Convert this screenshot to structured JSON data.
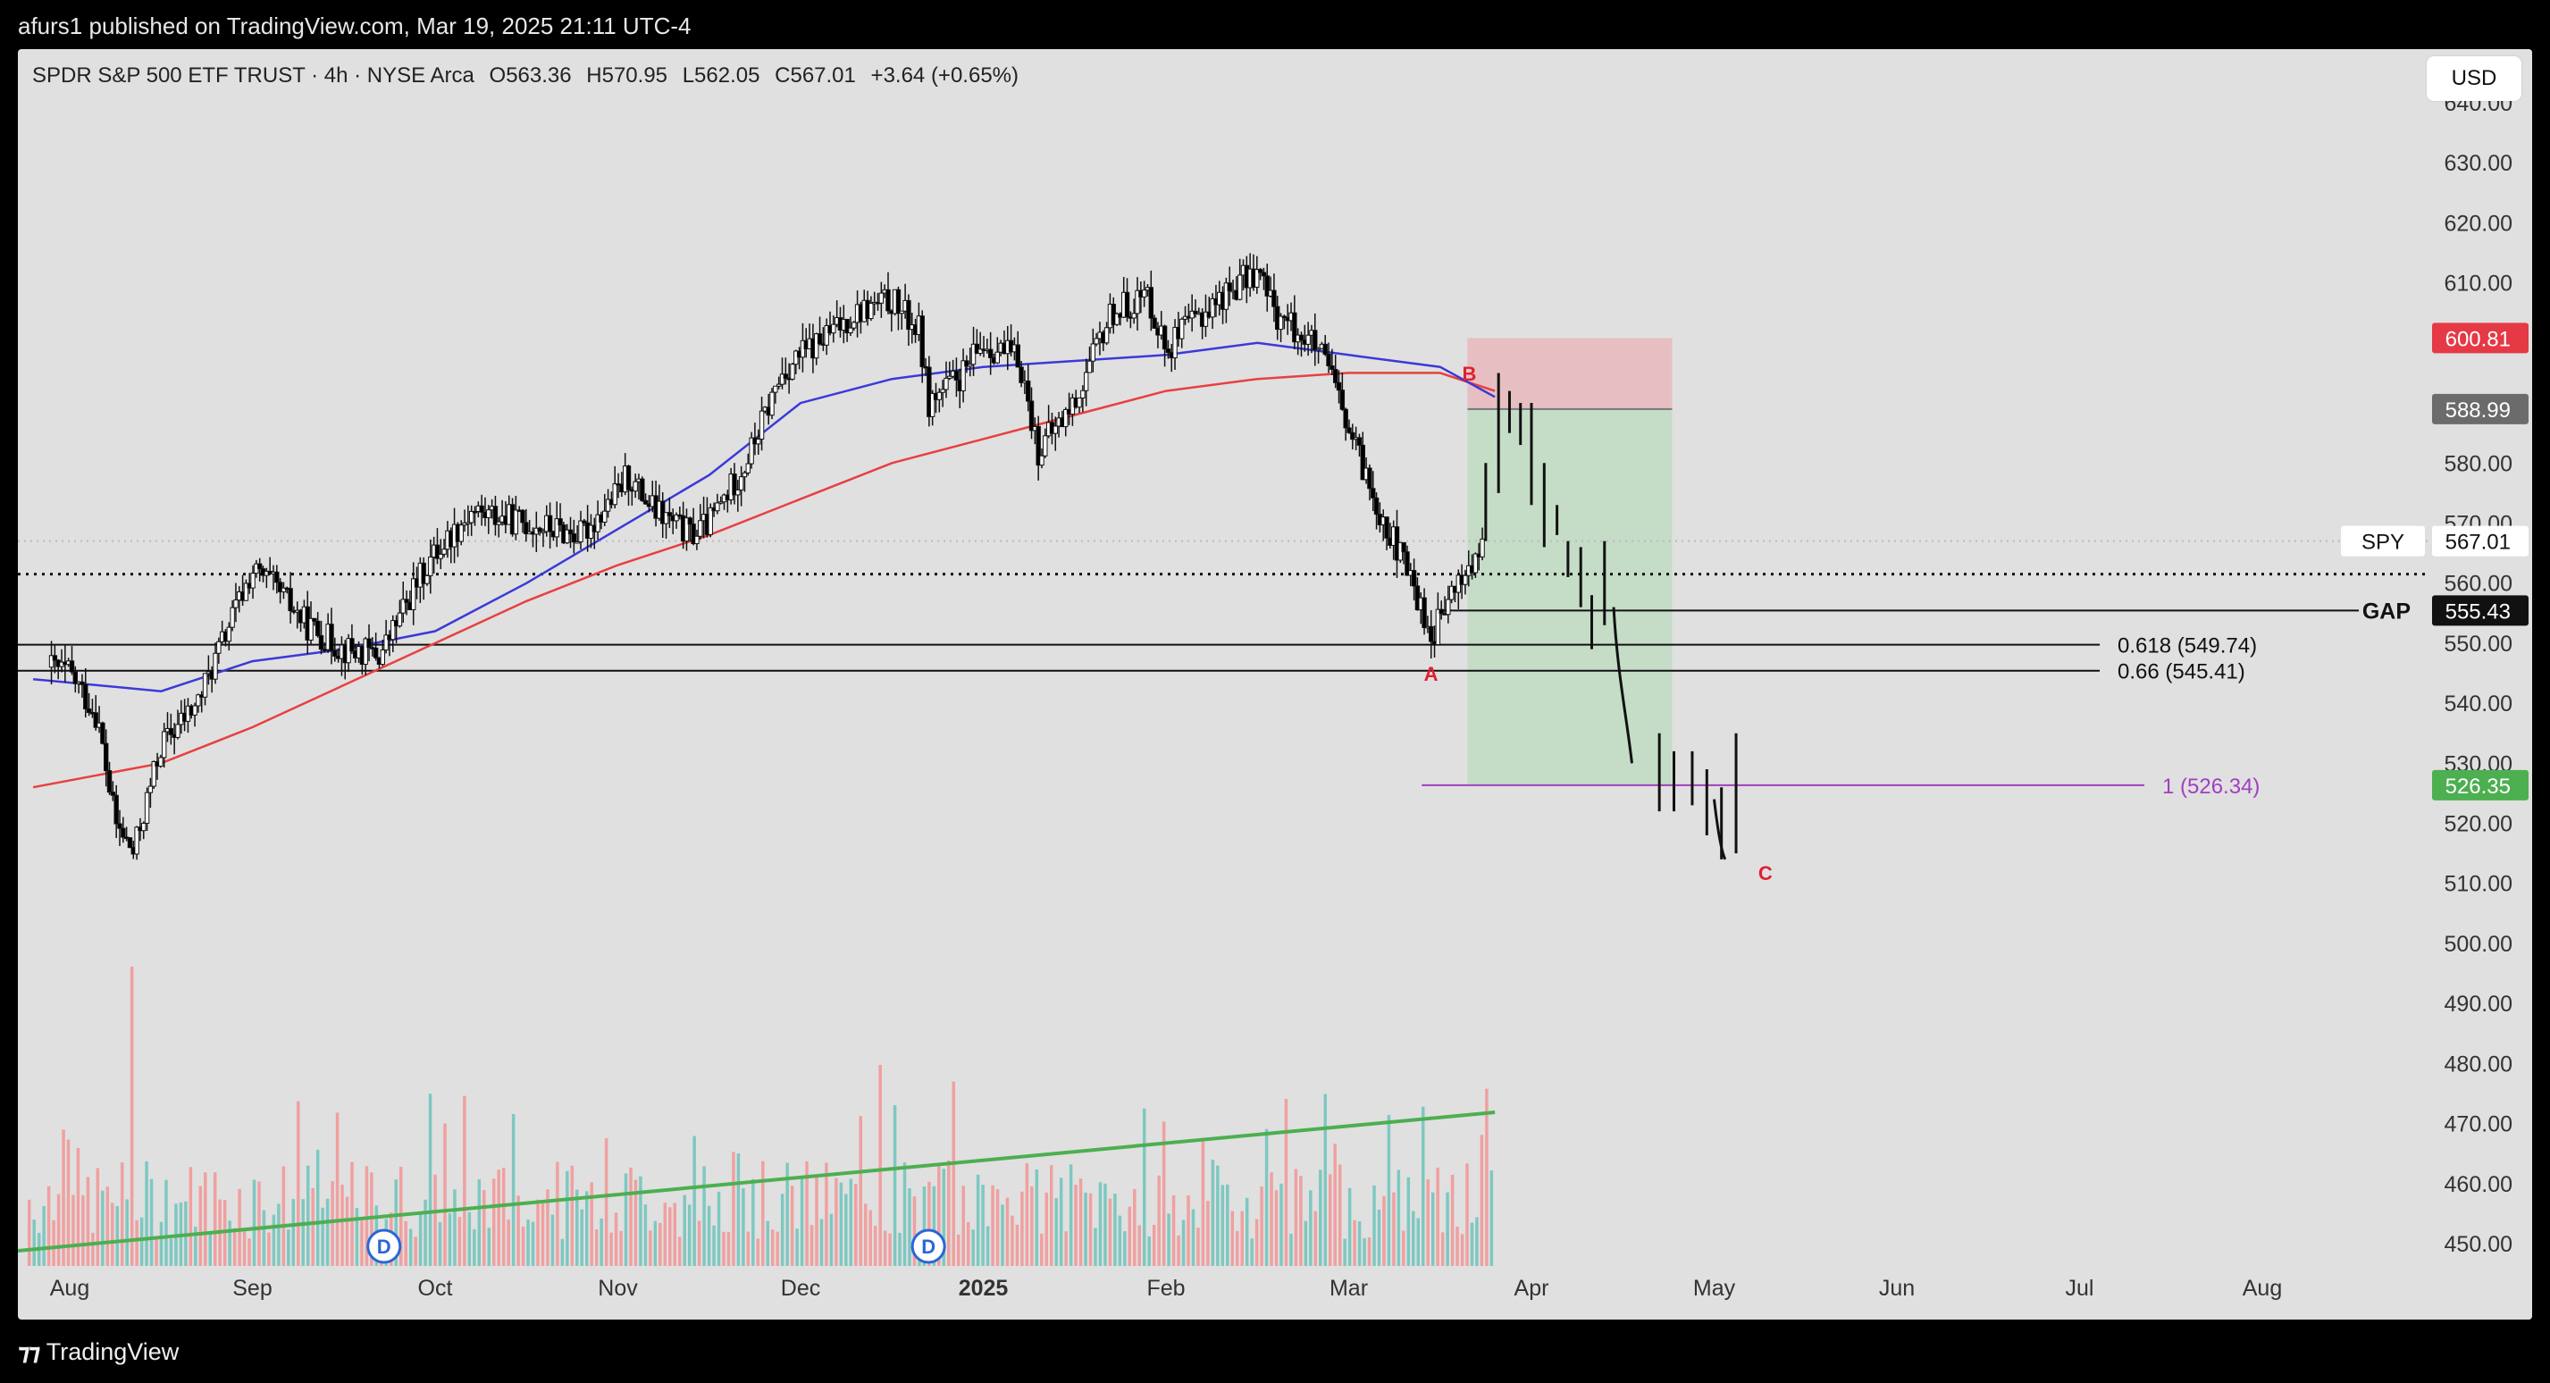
{
  "topbar": {
    "published": "afurs1 published on TradingView.com, Mar 19, 2025 21:11 UTC-4"
  },
  "header": {
    "symbol": "SPDR S&P 500 ETF TRUST · 4h · NYSE Arca",
    "open_label": "O",
    "open": "563.36",
    "high_label": "H",
    "high": "570.95",
    "low_label": "L",
    "low": "562.05",
    "close_label": "C",
    "close": "567.01",
    "change": "+3.64 (+0.65%)"
  },
  "currency_button": "USD",
  "footer": {
    "logo_icon": "tradingview-logo-icon",
    "brand": "TradingView"
  },
  "colors": {
    "background": "#e0e0e0",
    "up_candle": "#ffffff",
    "down_candle": "#000000",
    "ma_blue": "#3a3ad8",
    "ma_red": "#e84040",
    "volume_up": "#7ec8c0",
    "volume_down": "#f0a0a0",
    "volume_trend": "#4caf50",
    "risk_zone": "#e7b8bc",
    "reward_zone": "#c2dcc4",
    "fib_1": "#a040c0",
    "wave_label": "#e02030"
  },
  "chart_data": {
    "type": "candlestick",
    "symbol": "SPY",
    "timeframe": "4h",
    "currency": "USD",
    "ylim": [
      445,
      640
    ],
    "y_ticks": [
      450,
      460,
      470,
      480,
      490,
      500,
      510,
      520,
      530,
      540,
      550,
      560,
      570,
      580,
      590,
      600,
      610,
      620,
      630,
      640
    ],
    "x_months": [
      "Aug",
      "Sep",
      "Oct",
      "Nov",
      "Dec",
      "2025",
      "Feb",
      "Mar",
      "Apr",
      "May",
      "Jun",
      "Jul",
      "Aug"
    ],
    "price_path_month_index": [
      -0.1,
      0.0,
      0.15,
      0.25,
      0.35,
      0.5,
      0.7,
      0.9,
      1.0,
      1.1,
      1.3,
      1.5,
      1.7,
      1.9,
      2.0,
      2.2,
      2.5,
      2.8,
      3.0,
      3.05,
      3.2,
      3.4,
      3.5,
      3.7,
      3.9,
      4.0,
      4.1,
      4.3,
      4.5,
      4.65,
      4.7,
      4.9,
      5.0,
      5.2,
      5.3,
      5.5,
      5.7,
      5.9,
      6.0,
      6.2,
      6.4,
      6.5,
      6.6,
      6.8,
      6.9,
      7.0,
      7.2,
      7.35,
      7.45,
      7.6,
      7.75
    ],
    "price_path_close": [
      546,
      545,
      538,
      520,
      515,
      533,
      540,
      555,
      562,
      560,
      553,
      549,
      548,
      560,
      565,
      572,
      570,
      568,
      575,
      578,
      572,
      568,
      570,
      580,
      595,
      598,
      600,
      605,
      607,
      602,
      590,
      595,
      600,
      597,
      582,
      590,
      605,
      608,
      599,
      605,
      610,
      612,
      605,
      600,
      595,
      585,
      570,
      560,
      551,
      560,
      566
    ],
    "ma_blue_month_index": [
      -0.2,
      0.5,
      1.0,
      1.5,
      2.0,
      2.5,
      3.0,
      3.5,
      4.0,
      4.5,
      5.0,
      5.5,
      6.0,
      6.5,
      7.0,
      7.5,
      7.8
    ],
    "ma_blue": [
      544,
      542,
      547,
      549,
      552,
      560,
      569,
      578,
      590,
      594,
      596,
      597,
      598,
      600,
      598,
      596,
      591
    ],
    "ma_red_month_index": [
      -0.2,
      0.5,
      1.0,
      1.5,
      2.0,
      2.5,
      3.0,
      3.5,
      4.0,
      4.5,
      5.0,
      5.5,
      6.0,
      6.5,
      7.0,
      7.5,
      7.8
    ],
    "ma_red": [
      526,
      530,
      536,
      543,
      550,
      557,
      563,
      568,
      574,
      580,
      584,
      588,
      592,
      594,
      595,
      595,
      592
    ],
    "projection": {
      "label_B": "B",
      "label_A": "A",
      "label_C": "C",
      "point_B": 590,
      "point_A": 550,
      "point_C": 515
    },
    "levels": [
      {
        "name": "GAP",
        "value": 555.43,
        "label": "GAP"
      },
      {
        "name": "fib-0.618",
        "value": 549.74,
        "label": "0.618 (549.74)"
      },
      {
        "name": "fib-0.66",
        "value": 545.41,
        "label": "0.66 (545.41)"
      },
      {
        "name": "fib-1",
        "value": 526.34,
        "label": "1 (526.34)"
      },
      {
        "name": "dotted-support",
        "value": 561.5,
        "label": ""
      }
    ],
    "position": {
      "stop": 600.81,
      "entry": 588.99,
      "target": 526.35
    },
    "price_tags": [
      {
        "value": "600.81",
        "kind": "stop"
      },
      {
        "value": "588.99",
        "kind": "entry"
      },
      {
        "value": "567.01",
        "kind": "last",
        "symbol": "SPY"
      },
      {
        "value": "555.43",
        "kind": "gap"
      },
      {
        "value": "526.35",
        "kind": "target"
      }
    ],
    "volume": {
      "trend_label": "",
      "dividend_markers": [
        {
          "label": "D",
          "month_index": 1.72
        },
        {
          "label": "D",
          "month_index": 4.7
        }
      ]
    }
  }
}
